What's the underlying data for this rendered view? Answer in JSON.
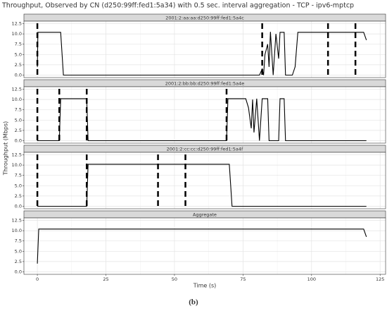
{
  "title": "Throughput, Observed by CN (d250:99ff:fed1:5a34) with 0.5 sec. interval aggregation - TCP - ipv6-mptcp",
  "x_label": "Time (s)",
  "y_label": "Throughput (Mbps)",
  "caption": "(b)",
  "chart_data": [
    {
      "type": "line",
      "title": "2001:2:aa:aa:d250:99ff:fed1:5a4c",
      "color": "#000000",
      "grid": true,
      "x": [
        0,
        0.2,
        8.5,
        9.5,
        81,
        82,
        82.5,
        83,
        84,
        84.5,
        85,
        86,
        87,
        88,
        88.5,
        90,
        90.5,
        93,
        94,
        95,
        119,
        120
      ],
      "values": [
        2,
        10.4,
        10.4,
        0,
        0,
        1.5,
        0,
        5,
        7.5,
        2,
        10.5,
        0,
        10,
        4,
        10.4,
        10.4,
        0,
        0,
        2,
        10.4,
        10.4,
        8.5
      ],
      "events": [
        0,
        82,
        106,
        116
      ],
      "xlim": [
        -4.9,
        127
      ],
      "ylim": [
        -0.6,
        13.1
      ],
      "yticks": [
        {
          "value": 0,
          "label": "0.0"
        },
        {
          "value": 2.5,
          "label": "2.5"
        },
        {
          "value": 5,
          "label": "5.0"
        },
        {
          "value": 7.5,
          "label": "7.5"
        },
        {
          "value": 10,
          "label": "10.0"
        },
        {
          "value": 12.5,
          "label": "12.5"
        }
      ]
    },
    {
      "type": "line",
      "title": "2001:2:bb:bb:d250:99ff:fed1:5a4e",
      "color": "#000000",
      "grid": true,
      "x": [
        0,
        8,
        8.5,
        18,
        18.5,
        69,
        69.5,
        76,
        77,
        78,
        78.5,
        79,
        80,
        81,
        82,
        84,
        84.5,
        88,
        88.5,
        90,
        90.5,
        120
      ],
      "values": [
        0,
        0,
        10.2,
        10.2,
        0,
        0,
        10.2,
        10.2,
        8,
        3,
        10,
        2,
        10.2,
        0,
        10.2,
        10.2,
        0,
        0,
        10.2,
        10.2,
        0,
        0
      ],
      "events": [
        0,
        8,
        18,
        69
      ],
      "xlim": [
        -4.9,
        127
      ],
      "ylim": [
        -0.6,
        13.1
      ],
      "yticks": [
        {
          "value": 0,
          "label": "0.0"
        },
        {
          "value": 2.5,
          "label": "2.5"
        },
        {
          "value": 5,
          "label": "5.0"
        },
        {
          "value": 7.5,
          "label": "7.5"
        },
        {
          "value": 10,
          "label": "10.0"
        },
        {
          "value": 12.5,
          "label": "12.5"
        }
      ]
    },
    {
      "type": "line",
      "title": "2001:2:cc:cc:d250:99ff:fed1:5a4f",
      "color": "#000000",
      "grid": true,
      "x": [
        0,
        18,
        18.5,
        70,
        71,
        120
      ],
      "values": [
        0,
        0,
        10.2,
        10.2,
        0,
        0
      ],
      "events": [
        0,
        18,
        44,
        54
      ],
      "xlim": [
        -4.9,
        127
      ],
      "ylim": [
        -0.6,
        13.1
      ],
      "yticks": [
        {
          "value": 0,
          "label": "0.0"
        },
        {
          "value": 2.5,
          "label": "2.5"
        },
        {
          "value": 5,
          "label": "5.0"
        },
        {
          "value": 7.5,
          "label": "7.5"
        },
        {
          "value": 10,
          "label": "10.0"
        },
        {
          "value": 12.5,
          "label": "12.5"
        }
      ]
    },
    {
      "type": "line",
      "title": "Aggregate",
      "color": "#000000",
      "grid": true,
      "x": [
        0,
        0.5,
        119,
        120
      ],
      "values": [
        2,
        10.4,
        10.4,
        8.5
      ],
      "events": [],
      "xlim": [
        -4.9,
        127
      ],
      "ylim": [
        -0.6,
        13.1
      ],
      "xticks": [
        0,
        25,
        50,
        75,
        100,
        125
      ],
      "yticks": [
        {
          "value": 0,
          "label": "0.0"
        },
        {
          "value": 2.5,
          "label": "2.5"
        },
        {
          "value": 5,
          "label": "5.0"
        },
        {
          "value": 7.5,
          "label": "7.5"
        },
        {
          "value": 10,
          "label": "10.0"
        },
        {
          "value": 12.5,
          "label": "12.5"
        }
      ]
    }
  ]
}
